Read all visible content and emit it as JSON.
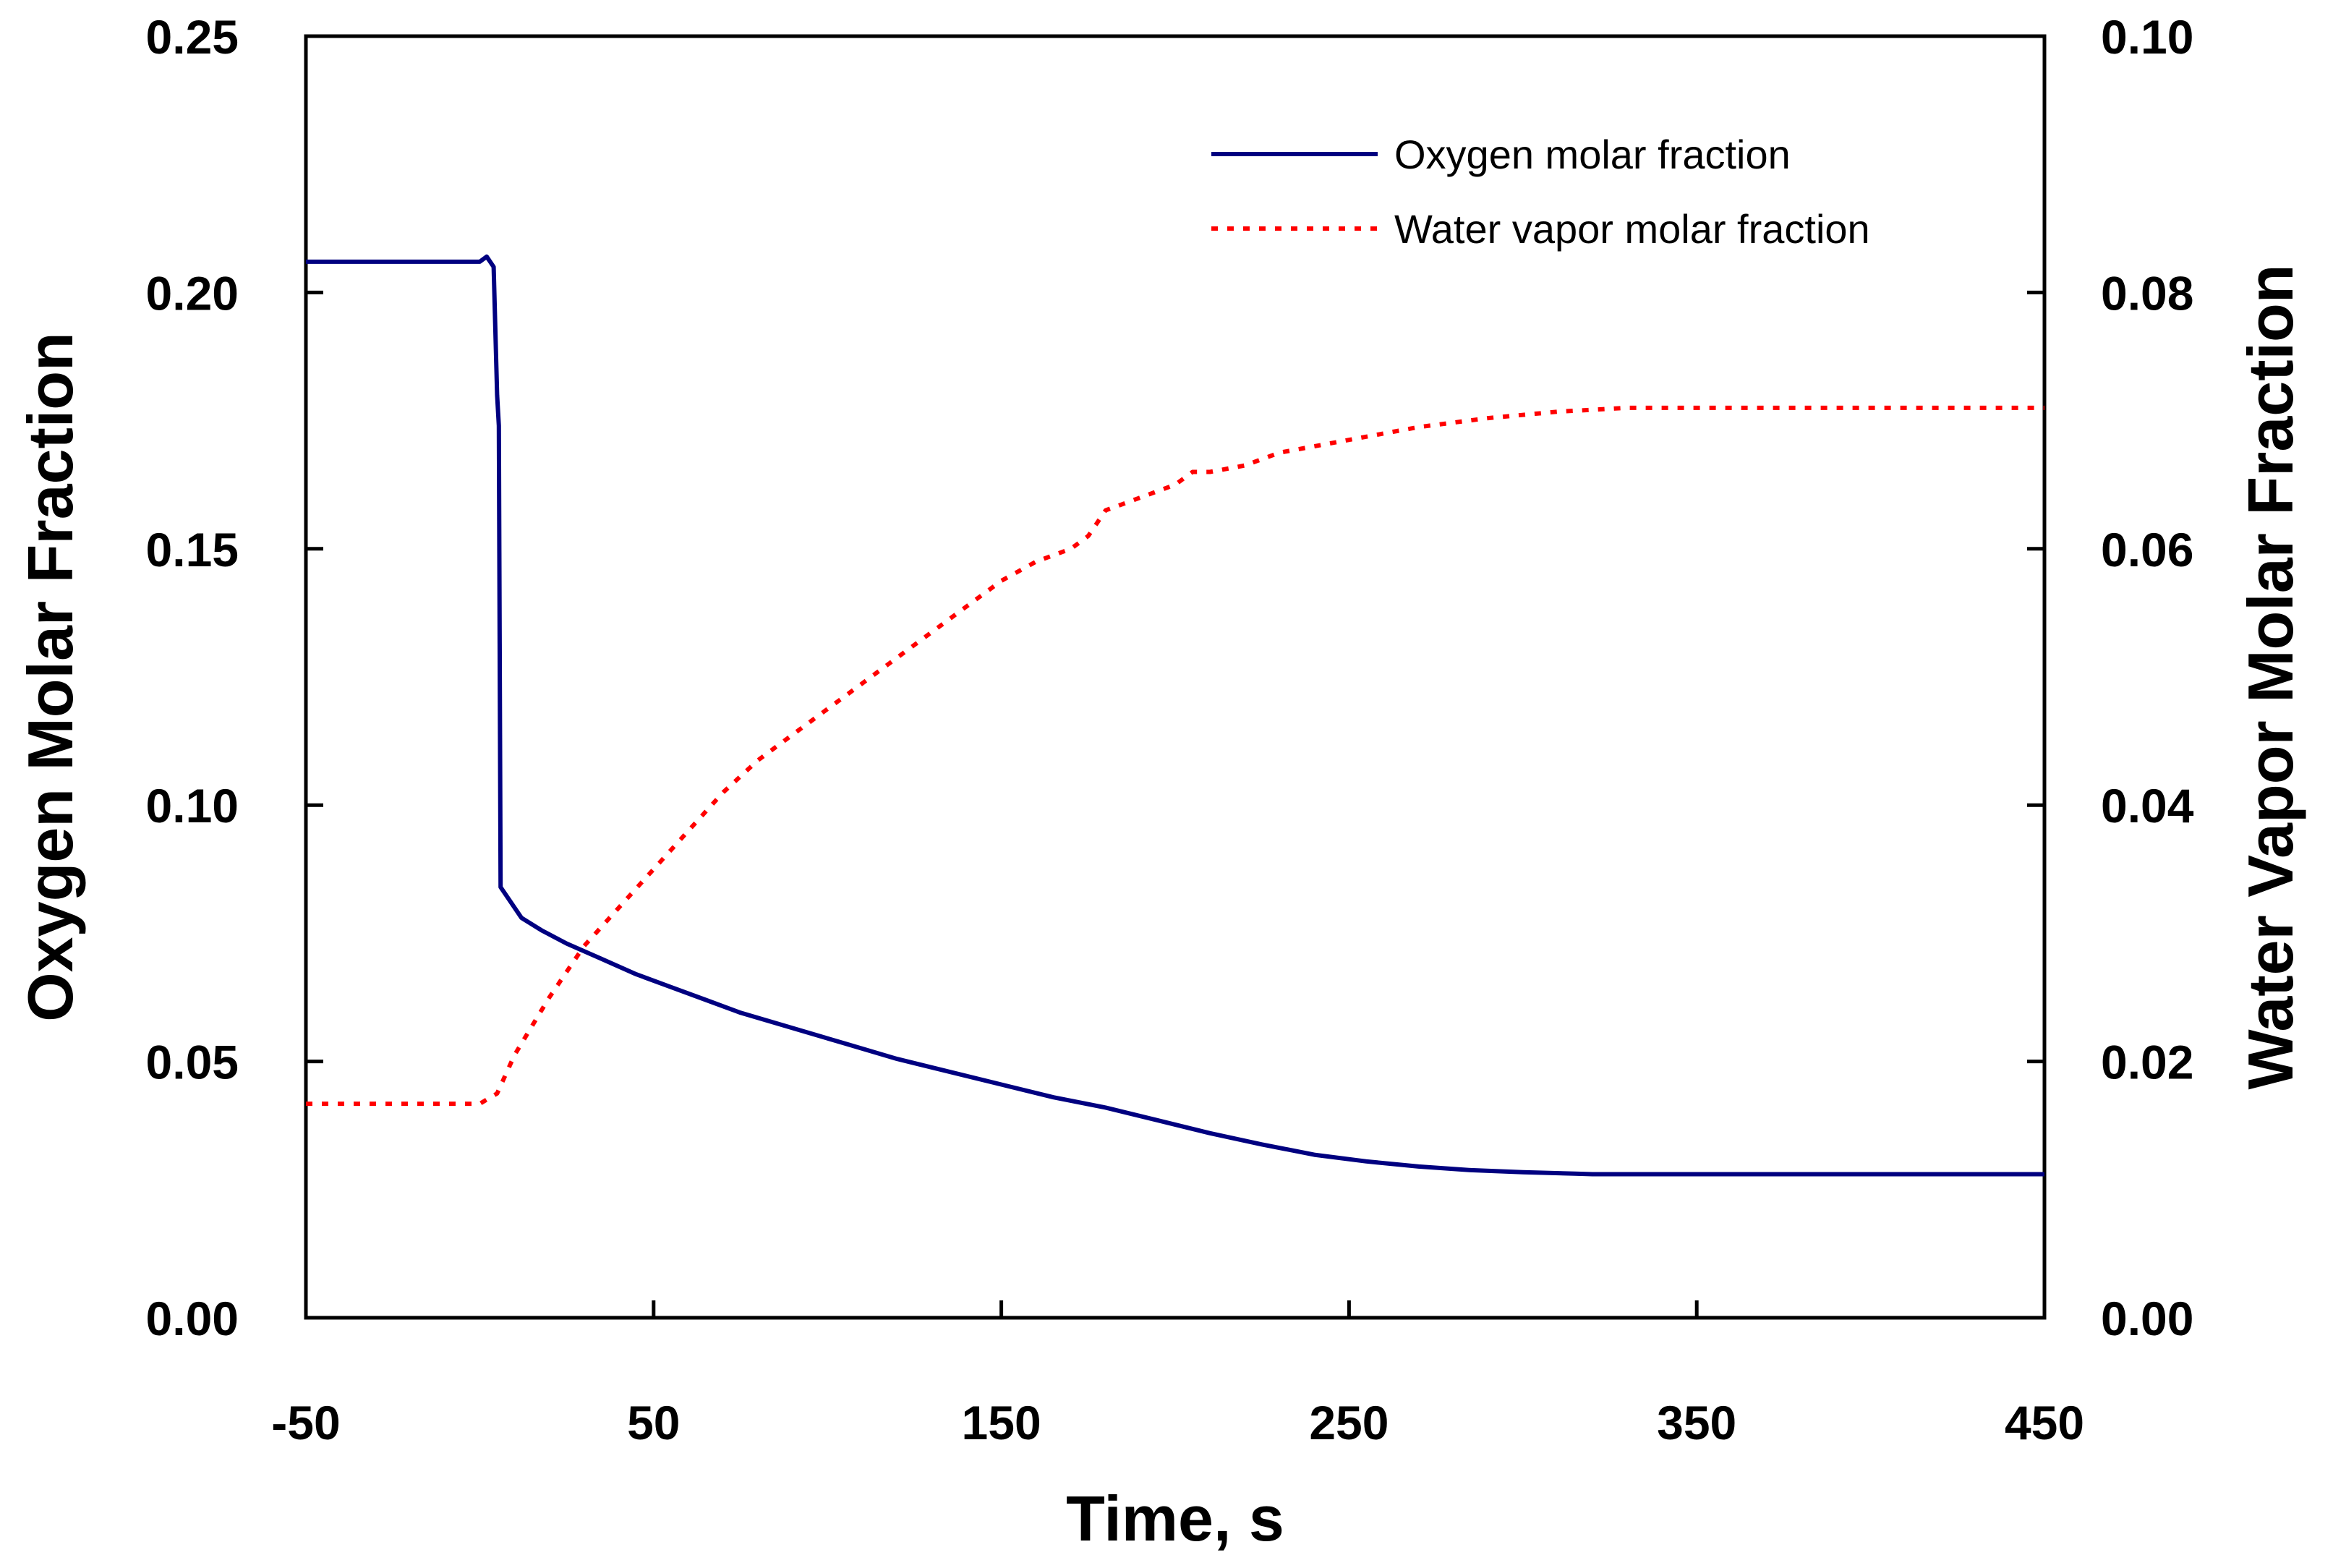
{
  "chart_data": {
    "type": "line",
    "title": "",
    "xlabel": "Time, s",
    "ylabel": "Oxygen Molar Fraction",
    "y2label": "Water Vapor Molar Fraction",
    "xlim": [
      -50,
      450
    ],
    "ylim": [
      0,
      0.25
    ],
    "y2lim": [
      0,
      0.1
    ],
    "x_ticks": [
      -50,
      50,
      150,
      250,
      350,
      450
    ],
    "x_tick_labels": [
      "-50",
      "50",
      "150",
      "250",
      "350",
      "450"
    ],
    "y_ticks": [
      0,
      0.05,
      0.1,
      0.15,
      0.2,
      0.25
    ],
    "y_tick_labels": [
      "0.00",
      "0.05",
      "0.10",
      "0.15",
      "0.20",
      "0.25"
    ],
    "y2_ticks": [
      0,
      0.02,
      0.04,
      0.06,
      0.08,
      0.1
    ],
    "y2_tick_labels": [
      "0.00",
      "0.02",
      "0.04",
      "0.06",
      "0.08",
      "0.10"
    ],
    "grid": false,
    "legend_position": "top-right",
    "series": [
      {
        "name": "Oxygen molar fraction",
        "axis": "left",
        "color": "#000080",
        "dash": "solid",
        "x": [
          -50,
          0,
          2,
          4,
          5,
          5.5,
          6,
          8,
          12,
          18,
          25,
          35,
          45,
          55,
          65,
          75,
          90,
          105,
          120,
          135,
          150,
          165,
          180,
          195,
          210,
          225,
          240,
          255,
          270,
          285,
          300,
          315,
          320,
          350,
          400,
          450
        ],
        "values": [
          0.206,
          0.206,
          0.207,
          0.205,
          0.18,
          0.174,
          0.084,
          0.082,
          0.078,
          0.0755,
          0.073,
          0.07,
          0.067,
          0.0645,
          0.062,
          0.0595,
          0.0565,
          0.0535,
          0.0505,
          0.048,
          0.0455,
          0.043,
          0.041,
          0.0385,
          0.036,
          0.0338,
          0.0318,
          0.0305,
          0.0295,
          0.0288,
          0.0284,
          0.0281,
          0.028,
          0.028,
          0.028,
          0.028
        ]
      },
      {
        "name": "Water vapor molar fraction",
        "axis": "right",
        "color": "#ff0000",
        "dash": "dotted",
        "x": [
          -50,
          0,
          5,
          10,
          20,
          30,
          40,
          50,
          60,
          70,
          80,
          90,
          100,
          110,
          120,
          130,
          140,
          150,
          160,
          170,
          175,
          180,
          185,
          190,
          200,
          205,
          210,
          220,
          230,
          250,
          270,
          290,
          310,
          330,
          350,
          400,
          450
        ],
        "values": [
          0.0167,
          0.0167,
          0.0175,
          0.0205,
          0.025,
          0.029,
          0.032,
          0.035,
          0.038,
          0.041,
          0.0435,
          0.0455,
          0.0475,
          0.0495,
          0.0515,
          0.0535,
          0.0555,
          0.0575,
          0.059,
          0.06,
          0.061,
          0.063,
          0.0635,
          0.064,
          0.065,
          0.066,
          0.066,
          0.0665,
          0.0675,
          0.0685,
          0.0695,
          0.0702,
          0.0707,
          0.071,
          0.071,
          0.071,
          0.071
        ]
      }
    ]
  }
}
